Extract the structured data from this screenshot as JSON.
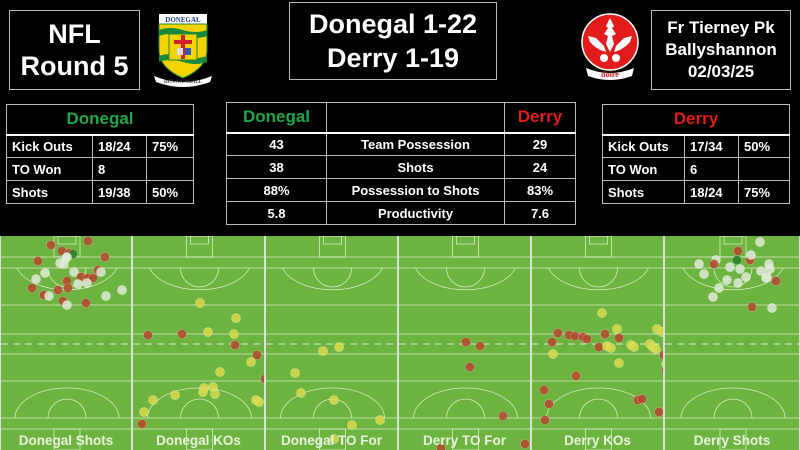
{
  "header": {
    "competition_line1": "NFL",
    "competition_line2": "Round 5",
    "score_home": "Donegal 1-22",
    "score_away": "Derry 1-19",
    "venue_line1": "Fr Tierney Pk",
    "venue_line2": "Ballyshannon",
    "date": "02/03/25"
  },
  "crests": {
    "home": {
      "name": "donegal-crest",
      "top_text": "DONEGAL",
      "motto": "DÚN NA NGALL"
    },
    "away": {
      "name": "derry-crest",
      "motto": "doire"
    }
  },
  "colors": {
    "home": "#1fa64a",
    "away": "#e21b1b",
    "pitch": "#6db33f",
    "dot_red": "#b5452c",
    "dot_white": "#dfe9d8",
    "dot_yellow": "#d9d94a"
  },
  "home_table": {
    "title": "Donegal",
    "rows": [
      {
        "label": "Kick Outs",
        "value": "18/24",
        "pct": "75%"
      },
      {
        "label": "TO Won",
        "value": "8",
        "pct": ""
      },
      {
        "label": "Shots",
        "value": "19/38",
        "pct": "50%"
      }
    ]
  },
  "comparison_table": {
    "home_team": "Donegal",
    "away_team": "Derry",
    "rows": [
      {
        "home": "43",
        "metric": "Team Possession",
        "away": "29"
      },
      {
        "home": "38",
        "metric": "Shots",
        "away": "24"
      },
      {
        "home": "88%",
        "metric": "Possession to Shots",
        "away": "83%"
      },
      {
        "home": "5.8",
        "metric": "Productivity",
        "away": "7.6"
      }
    ]
  },
  "away_table": {
    "title": "Derry",
    "rows": [
      {
        "label": "Kick Outs",
        "value": "17/34",
        "pct": "50%"
      },
      {
        "label": "TO Won",
        "value": "6",
        "pct": ""
      },
      {
        "label": "Shots",
        "value": "18/24",
        "pct": "75%"
      }
    ]
  },
  "pitch_panels": [
    {
      "label": "Donegal Shots",
      "dots": [
        [
          50,
          9,
          "r"
        ],
        [
          61,
          15,
          "r"
        ],
        [
          68,
          17,
          "r"
        ],
        [
          72,
          18,
          "g"
        ],
        [
          66,
          21,
          "w"
        ],
        [
          63,
          28,
          "w"
        ],
        [
          37,
          25,
          "r"
        ],
        [
          104,
          21,
          "r"
        ],
        [
          87,
          5,
          "r"
        ],
        [
          44,
          37,
          "w"
        ],
        [
          35,
          43,
          "w"
        ],
        [
          73,
          36,
          "w"
        ],
        [
          80,
          41,
          "r"
        ],
        [
          87,
          42,
          "r"
        ],
        [
          92,
          42,
          "r"
        ],
        [
          97,
          34,
          "r"
        ],
        [
          100,
          36,
          "w"
        ],
        [
          66,
          45,
          "r"
        ],
        [
          67,
          52,
          "r"
        ],
        [
          57,
          54,
          "r"
        ],
        [
          31,
          52,
          "r"
        ],
        [
          43,
          59,
          "r"
        ],
        [
          48,
          60,
          "w"
        ],
        [
          62,
          65,
          "r"
        ],
        [
          66,
          69,
          "w"
        ],
        [
          77,
          48,
          "w"
        ],
        [
          86,
          47,
          "w"
        ],
        [
          105,
          60,
          "w"
        ],
        [
          121,
          54,
          "w"
        ],
        [
          85,
          67,
          "r"
        ],
        [
          65,
          22,
          "w"
        ],
        [
          59,
          27,
          "w"
        ]
      ]
    },
    {
      "label": "Donegal KOs",
      "dots": [
        [
          67,
          67,
          "y"
        ],
        [
          103,
          82,
          "y"
        ],
        [
          15,
          99,
          "r"
        ],
        [
          49,
          98,
          "r"
        ],
        [
          75,
          96,
          "y"
        ],
        [
          101,
          98,
          "y"
        ],
        [
          102,
          109,
          "r"
        ],
        [
          124,
          119,
          "r"
        ],
        [
          118,
          126,
          "y"
        ],
        [
          87,
          136,
          "y"
        ],
        [
          132,
          143,
          "r"
        ],
        [
          71,
          152,
          "y"
        ],
        [
          80,
          151,
          "y"
        ],
        [
          82,
          158,
          "y"
        ],
        [
          70,
          156,
          "y"
        ],
        [
          42,
          159,
          "y"
        ],
        [
          20,
          164,
          "y"
        ],
        [
          11,
          176,
          "y"
        ],
        [
          9,
          188,
          "r"
        ],
        [
          123,
          164,
          "y"
        ],
        [
          126,
          166,
          "y"
        ]
      ]
    },
    {
      "label": "Donegal TO For",
      "dots": [
        [
          57,
          115,
          "y"
        ],
        [
          73,
          111,
          "y"
        ],
        [
          29,
          137,
          "y"
        ],
        [
          35,
          157,
          "y"
        ],
        [
          68,
          164,
          "y"
        ],
        [
          114,
          184,
          "y"
        ],
        [
          86,
          189,
          "y"
        ],
        [
          68,
          203,
          "y"
        ]
      ]
    },
    {
      "label": "Derry TO For",
      "dots": [
        [
          67,
          106,
          "r"
        ],
        [
          81,
          110,
          "r"
        ],
        [
          71,
          131,
          "r"
        ],
        [
          104,
          180,
          "r"
        ],
        [
          42,
          212,
          "r"
        ],
        [
          126,
          208,
          "r"
        ]
      ]
    },
    {
      "label": "Derry KOs",
      "dots": [
        [
          70,
          77,
          "y"
        ],
        [
          85,
          93,
          "y"
        ],
        [
          26,
          97,
          "r"
        ],
        [
          20,
          106,
          "r"
        ],
        [
          37,
          99,
          "r"
        ],
        [
          43,
          100,
          "r"
        ],
        [
          51,
          101,
          "r"
        ],
        [
          55,
          103,
          "r"
        ],
        [
          73,
          98,
          "r"
        ],
        [
          87,
          102,
          "r"
        ],
        [
          67,
          111,
          "r"
        ],
        [
          75,
          110,
          "y"
        ],
        [
          79,
          112,
          "y"
        ],
        [
          99,
          109,
          "y"
        ],
        [
          102,
          111,
          "y"
        ],
        [
          118,
          108,
          "y"
        ],
        [
          121,
          111,
          "y"
        ],
        [
          124,
          113,
          "y"
        ],
        [
          125,
          93,
          "y"
        ],
        [
          130,
          96,
          "y"
        ],
        [
          132,
          119,
          "r"
        ],
        [
          21,
          118,
          "y"
        ],
        [
          87,
          127,
          "y"
        ],
        [
          44,
          140,
          "r"
        ],
        [
          12,
          154,
          "r"
        ],
        [
          17,
          168,
          "r"
        ],
        [
          106,
          164,
          "r"
        ],
        [
          110,
          163,
          "r"
        ],
        [
          127,
          176,
          "r"
        ],
        [
          13,
          184,
          "r"
        ],
        [
          134,
          128,
          "y"
        ],
        [
          134,
          134,
          "r"
        ]
      ]
    },
    {
      "label": "Derry Shots",
      "dots": [
        [
          95,
          6,
          "w"
        ],
        [
          73,
          15,
          "r"
        ],
        [
          51,
          24,
          "w"
        ],
        [
          49,
          28,
          "r"
        ],
        [
          72,
          24,
          "g"
        ],
        [
          85,
          24,
          "r"
        ],
        [
          86,
          19,
          "w"
        ],
        [
          34,
          28,
          "w"
        ],
        [
          39,
          38,
          "w"
        ],
        [
          65,
          31,
          "w"
        ],
        [
          75,
          33,
          "w"
        ],
        [
          104,
          28,
          "w"
        ],
        [
          105,
          33,
          "w"
        ],
        [
          96,
          35,
          "w"
        ],
        [
          81,
          41,
          "w"
        ],
        [
          101,
          42,
          "w"
        ],
        [
          111,
          45,
          "r"
        ],
        [
          62,
          44,
          "w"
        ],
        [
          73,
          47,
          "w"
        ],
        [
          54,
          52,
          "w"
        ],
        [
          48,
          61,
          "w"
        ],
        [
          87,
          71,
          "r"
        ],
        [
          107,
          72,
          "w"
        ],
        [
          102,
          41,
          "w"
        ]
      ]
    }
  ]
}
